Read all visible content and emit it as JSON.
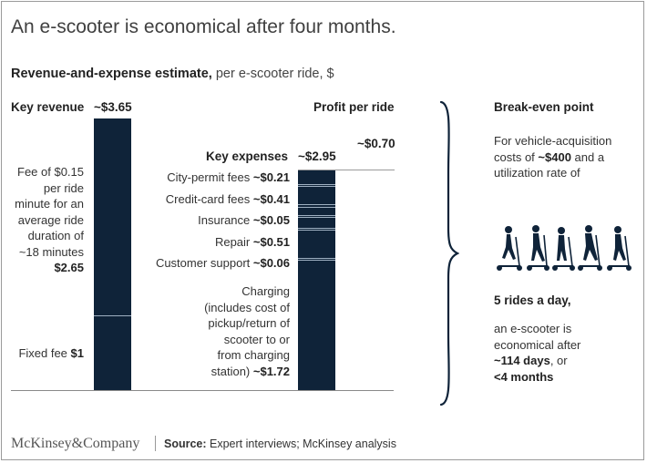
{
  "title": "An e-scooter is economical after four months.",
  "subtitle": {
    "bold": "Revenue-and-expense estimate,",
    "light": " per e-scooter ride, $"
  },
  "chart_data": {
    "type": "bar",
    "title": "Revenue-and-expense estimate, per e-scooter ride, $",
    "bars": [
      {
        "header": "Key revenue",
        "total_label": "~$3.65",
        "total": 3.65,
        "segments": [
          {
            "label": "Fee of $0.15 per ride minute for an average ride duration of ~18 minutes",
            "value_label": "$2.65",
            "value": 2.65
          },
          {
            "label": "Fixed fee",
            "value_label": "$1",
            "value": 1.0
          }
        ]
      },
      {
        "header": "Key expenses",
        "total_label": "~$2.95",
        "total": 2.95,
        "segments": [
          {
            "label": "City-permit fees",
            "value_label": "~$0.21",
            "value": 0.21
          },
          {
            "label": "Credit-card fees",
            "value_label": "~$0.41",
            "value": 0.41
          },
          {
            "label": "Insurance",
            "value_label": "~$0.05",
            "value": 0.05
          },
          {
            "label": "Repair",
            "value_label": "~$0.51",
            "value": 0.51
          },
          {
            "label": "Customer support",
            "value_label": "~$0.06",
            "value": 0.06
          },
          {
            "label": "Charging (includes cost of pickup/return of scooter to or from charging station)",
            "value_label": "~$1.72",
            "value": 1.72
          }
        ]
      },
      {
        "header": "Profit per ride",
        "total_label": "~$0.70",
        "total": 0.7
      }
    ]
  },
  "texts": {
    "revenue_seg1_lines": [
      "Fee of $0.15",
      "per ride",
      "minute for an",
      "average ride",
      "duration of",
      "~18 minutes"
    ],
    "revenue_seg1_value": "$2.65",
    "revenue_seg2_label": "Fixed fee ",
    "revenue_seg2_value": "$1",
    "expense_lines": [
      {
        "label": "City-permit fees ",
        "value": "~$0.21"
      },
      {
        "label": "Credit-card fees ",
        "value": "~$0.41"
      },
      {
        "label": "Insurance ",
        "value": "~$0.05"
      },
      {
        "label": "Repair ",
        "value": "~$0.51"
      },
      {
        "label": "Customer support ",
        "value": "~$0.06"
      }
    ],
    "charging_lines": [
      "Charging",
      "(includes cost of",
      "pickup/return of",
      "scooter to or",
      "from charging"
    ],
    "charging_last_label": "station) ",
    "charging_value": "~$1.72"
  },
  "breakeven": {
    "header": "Break-even point",
    "line1": "For vehicle-acquisition",
    "line2_pre": "costs of ",
    "line2_bold": "~$400",
    "line2_post": " and a",
    "line3": "utilization rate of",
    "rides": "5 rides a day,",
    "result1": "an e-scooter is",
    "result2": "economical after",
    "result3_bold": "~114 days",
    "result3_post": ", or",
    "result4_bold": "<4 months",
    "icon": "scooter-riders-icon"
  },
  "footer": {
    "logo": "McKinsey&Company",
    "source_bold": "Source:",
    "source_text": " Expert interviews; McKinsey analysis"
  },
  "colors": {
    "bar": "#0f2339",
    "separator": "#9fb0c2"
  }
}
